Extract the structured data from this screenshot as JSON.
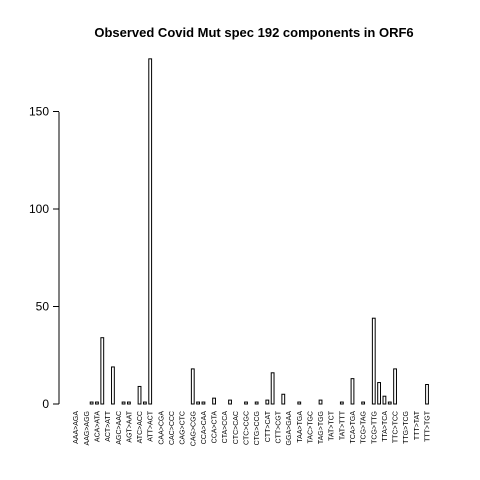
{
  "chart_data": {
    "type": "bar",
    "title": "Observed Covid Mut spec 192 components in ORF6",
    "xlabel": "",
    "ylabel": "",
    "ylim": [
      0,
      180
    ],
    "yticks": [
      0,
      50,
      100,
      150
    ],
    "grid": false,
    "bar_color": "#ffffff",
    "bar_edge_color": "#000000",
    "tick_labels": [
      "AAA>AGA",
      "AAG>AGG",
      "ACA>ATA",
      "ACT>ATT",
      "AGC>AAC",
      "AGT>AAT",
      "ATC>ACC",
      "ATT>ACT",
      "CAA>CGA",
      "CAC>CCC",
      "CAG>CTC",
      "CAG>CGG",
      "CCA>CAA",
      "CCA>CTA",
      "CTA>CCA",
      "CTC>CAC",
      "CTC>CGC",
      "CTG>CCG",
      "CTT>CAT",
      "CTT>CGT",
      "GGA>GAA",
      "TAA>TGA",
      "TAC>TGC",
      "TAG>TGG",
      "TAT>TCT",
      "TAT>TTT",
      "TCA>TGA",
      "TCG>TAG",
      "TCG>TTG",
      "TTA>TCA",
      "TTC>TCC",
      "TTG>TCG",
      "TTT>TAT",
      "TTT>TGT"
    ],
    "values": [
      0,
      0,
      0,
      1,
      1,
      34,
      0,
      19,
      0,
      1,
      1,
      0,
      9,
      1,
      177,
      0,
      0,
      0,
      0,
      0,
      0,
      0,
      18,
      1,
      1,
      0,
      3,
      0,
      0,
      2,
      0,
      0,
      1,
      0,
      1,
      0,
      2,
      16,
      0,
      5,
      0,
      0,
      1,
      0,
      0,
      0,
      2,
      0,
      0,
      0,
      1,
      0,
      13,
      0,
      1,
      0,
      44,
      11,
      4,
      1,
      18,
      0,
      0,
      0,
      0,
      0,
      10,
      0
    ]
  }
}
